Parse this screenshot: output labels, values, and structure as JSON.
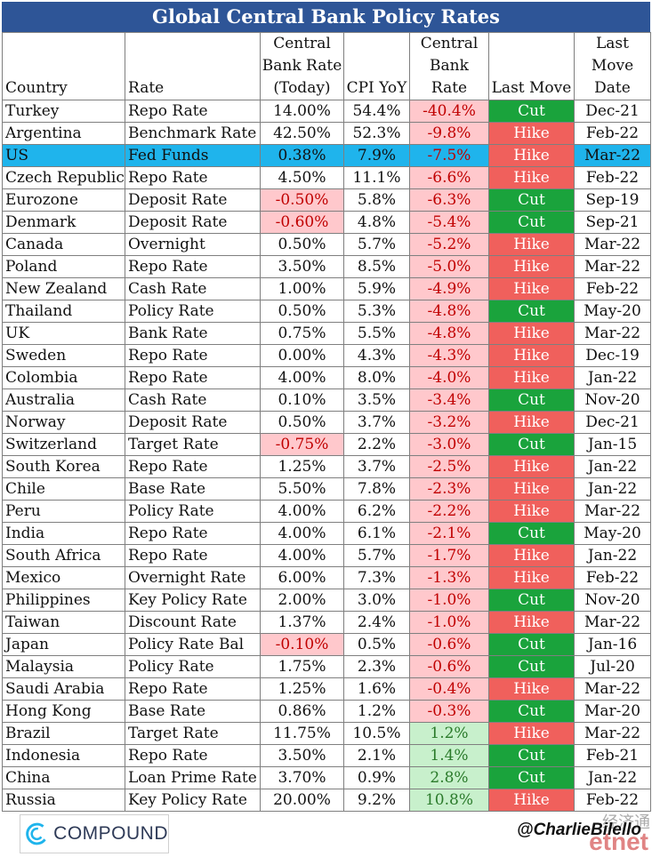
{
  "title": "Global Central Bank Policy Rates",
  "columns": {
    "country": "Country",
    "rate": "Rate",
    "cb_rate_today": "Central Bank Rate (Today)",
    "cpi": "CPI YoY",
    "real_rate": "Central Bank Rate",
    "last_move": "Last Move",
    "last_move_date": "Last Move Date"
  },
  "rows": [
    {
      "country": "Turkey",
      "rate": "Repo Rate",
      "today": "14.00%",
      "cpi": "54.4%",
      "real": "-40.4%",
      "move": "Cut",
      "date": "Dec-21"
    },
    {
      "country": "Argentina",
      "rate": "Benchmark Rate",
      "today": "42.50%",
      "cpi": "52.3%",
      "real": "-9.8%",
      "move": "Hike",
      "date": "Feb-22"
    },
    {
      "country": "US",
      "rate": "Fed Funds",
      "today": "0.38%",
      "cpi": "7.9%",
      "real": "-7.5%",
      "move": "Hike",
      "date": "Mar-22"
    },
    {
      "country": "Czech Republic",
      "rate": "Repo Rate",
      "today": "4.50%",
      "cpi": "11.1%",
      "real": "-6.6%",
      "move": "Hike",
      "date": "Feb-22"
    },
    {
      "country": "Eurozone",
      "rate": "Deposit Rate",
      "today": "-0.50%",
      "cpi": "5.8%",
      "real": "-6.3%",
      "move": "Cut",
      "date": "Sep-19"
    },
    {
      "country": "Denmark",
      "rate": "Deposit Rate",
      "today": "-0.60%",
      "cpi": "4.8%",
      "real": "-5.4%",
      "move": "Cut",
      "date": "Sep-21"
    },
    {
      "country": "Canada",
      "rate": "Overnight",
      "today": "0.50%",
      "cpi": "5.7%",
      "real": "-5.2%",
      "move": "Hike",
      "date": "Mar-22"
    },
    {
      "country": "Poland",
      "rate": "Repo Rate",
      "today": "3.50%",
      "cpi": "8.5%",
      "real": "-5.0%",
      "move": "Hike",
      "date": "Mar-22"
    },
    {
      "country": "New Zealand",
      "rate": "Cash Rate",
      "today": "1.00%",
      "cpi": "5.9%",
      "real": "-4.9%",
      "move": "Hike",
      "date": "Feb-22"
    },
    {
      "country": "Thailand",
      "rate": "Policy Rate",
      "today": "0.50%",
      "cpi": "5.3%",
      "real": "-4.8%",
      "move": "Cut",
      "date": "May-20"
    },
    {
      "country": "UK",
      "rate": "Bank Rate",
      "today": "0.75%",
      "cpi": "5.5%",
      "real": "-4.8%",
      "move": "Hike",
      "date": "Mar-22"
    },
    {
      "country": "Sweden",
      "rate": "Repo Rate",
      "today": "0.00%",
      "cpi": "4.3%",
      "real": "-4.3%",
      "move": "Hike",
      "date": "Dec-19"
    },
    {
      "country": "Colombia",
      "rate": "Repo Rate",
      "today": "4.00%",
      "cpi": "8.0%",
      "real": "-4.0%",
      "move": "Hike",
      "date": "Jan-22"
    },
    {
      "country": "Australia",
      "rate": "Cash Rate",
      "today": "0.10%",
      "cpi": "3.5%",
      "real": "-3.4%",
      "move": "Cut",
      "date": "Nov-20"
    },
    {
      "country": "Norway",
      "rate": "Deposit Rate",
      "today": "0.50%",
      "cpi": "3.7%",
      "real": "-3.2%",
      "move": "Hike",
      "date": "Dec-21"
    },
    {
      "country": "Switzerland",
      "rate": "Target Rate",
      "today": "-0.75%",
      "cpi": "2.2%",
      "real": "-3.0%",
      "move": "Cut",
      "date": "Jan-15"
    },
    {
      "country": "South Korea",
      "rate": "Repo Rate",
      "today": "1.25%",
      "cpi": "3.7%",
      "real": "-2.5%",
      "move": "Hike",
      "date": "Jan-22"
    },
    {
      "country": "Chile",
      "rate": "Base Rate",
      "today": "5.50%",
      "cpi": "7.8%",
      "real": "-2.3%",
      "move": "Hike",
      "date": "Jan-22"
    },
    {
      "country": "Peru",
      "rate": "Policy Rate",
      "today": "4.00%",
      "cpi": "6.2%",
      "real": "-2.2%",
      "move": "Hike",
      "date": "Mar-22"
    },
    {
      "country": "India",
      "rate": "Repo Rate",
      "today": "4.00%",
      "cpi": "6.1%",
      "real": "-2.1%",
      "move": "Cut",
      "date": "May-20"
    },
    {
      "country": "South Africa",
      "rate": "Repo Rate",
      "today": "4.00%",
      "cpi": "5.7%",
      "real": "-1.7%",
      "move": "Hike",
      "date": "Jan-22"
    },
    {
      "country": "Mexico",
      "rate": "Overnight Rate",
      "today": "6.00%",
      "cpi": "7.3%",
      "real": "-1.3%",
      "move": "Hike",
      "date": "Feb-22"
    },
    {
      "country": "Philippines",
      "rate": "Key Policy Rate",
      "today": "2.00%",
      "cpi": "3.0%",
      "real": "-1.0%",
      "move": "Cut",
      "date": "Nov-20"
    },
    {
      "country": "Taiwan",
      "rate": "Discount Rate",
      "today": "1.37%",
      "cpi": "2.4%",
      "real": "-1.0%",
      "move": "Hike",
      "date": "Mar-22"
    },
    {
      "country": "Japan",
      "rate": "Policy Rate Bal",
      "today": "-0.10%",
      "cpi": "0.5%",
      "real": "-0.6%",
      "move": "Cut",
      "date": "Jan-16"
    },
    {
      "country": "Malaysia",
      "rate": "Policy Rate",
      "today": "1.75%",
      "cpi": "2.3%",
      "real": "-0.6%",
      "move": "Cut",
      "date": "Jul-20"
    },
    {
      "country": "Saudi Arabia",
      "rate": "Repo Rate",
      "today": "1.25%",
      "cpi": "1.6%",
      "real": "-0.4%",
      "move": "Hike",
      "date": "Mar-22"
    },
    {
      "country": "Hong Kong",
      "rate": "Base Rate",
      "today": "0.86%",
      "cpi": "1.2%",
      "real": "-0.3%",
      "move": "Cut",
      "date": "Mar-20"
    },
    {
      "country": "Brazil",
      "rate": "Target Rate",
      "today": "11.75%",
      "cpi": "10.5%",
      "real": "1.2%",
      "move": "Hike",
      "date": "Mar-22"
    },
    {
      "country": "Indonesia",
      "rate": "Repo Rate",
      "today": "3.50%",
      "cpi": "2.1%",
      "real": "1.4%",
      "move": "Cut",
      "date": "Feb-21"
    },
    {
      "country": "China",
      "rate": "Loan Prime Rate",
      "today": "3.70%",
      "cpi": "0.9%",
      "real": "2.8%",
      "move": "Cut",
      "date": "Jan-22"
    },
    {
      "country": "Russia",
      "rate": "Key Policy Rate",
      "today": "20.00%",
      "cpi": "9.2%",
      "real": "10.8%",
      "move": "Hike",
      "date": "Feb-22"
    }
  ],
  "highlight_country": "US",
  "footer": {
    "logo_text": "COMPOUND",
    "handle": "@CharlieBilello",
    "watermark_cn": "经济通",
    "watermark": "etnet"
  },
  "colors": {
    "title_bg": "#2e5597",
    "highlight": "#1fb4ec",
    "cut": "#1aa33c",
    "hike": "#f0605c",
    "negative_bg": "#ffc8cc",
    "positive_bg": "#c8f0cc"
  }
}
